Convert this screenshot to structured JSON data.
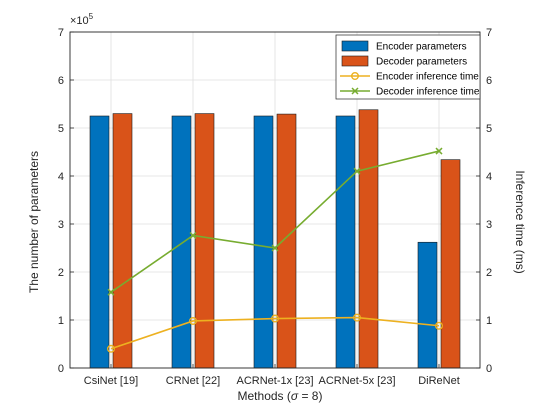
{
  "chart_data": {
    "type": "bar",
    "categories": [
      "CsiNet [19]",
      "CRNet [22]",
      "ACRNet-1x [23]",
      "ACRNet-5x [23]",
      "DiReNet"
    ],
    "xlabel_prefix": "Methods (",
    "xlabel_sigma": "σ",
    "xlabel_suffix": " = 8)",
    "ylabel_left": "The number of parameters",
    "ylabel_right": "Inference time (ms)",
    "y_left_multiplier": "×10",
    "y_left_exponent": "5",
    "ylim_left": [
      0,
      7
    ],
    "ylim_right": [
      0,
      7
    ],
    "left_ticks": [
      "0",
      "1",
      "2",
      "3",
      "4",
      "5",
      "6",
      "7"
    ],
    "right_ticks": [
      "0",
      "1",
      "2",
      "3",
      "4",
      "5",
      "6",
      "7"
    ],
    "grid": true,
    "legend_position": "top-right",
    "bar_series": [
      {
        "name": "Encoder parameters",
        "color": "#0072BD",
        "values": [
          5.25,
          5.25,
          5.25,
          5.25,
          2.62
        ]
      },
      {
        "name": "Decoder parameters",
        "color": "#D95319",
        "values": [
          5.3,
          5.3,
          5.29,
          5.38,
          4.34
        ]
      }
    ],
    "line_series": [
      {
        "name": "Encoder inference time",
        "color": "#EDB120",
        "marker": "circle",
        "values": [
          0.4,
          0.98,
          1.03,
          1.05,
          0.88
        ]
      },
      {
        "name": "Decoder inference time",
        "color": "#77AC30",
        "marker": "x",
        "values": [
          1.58,
          2.76,
          2.5,
          4.1,
          4.52
        ]
      }
    ]
  }
}
